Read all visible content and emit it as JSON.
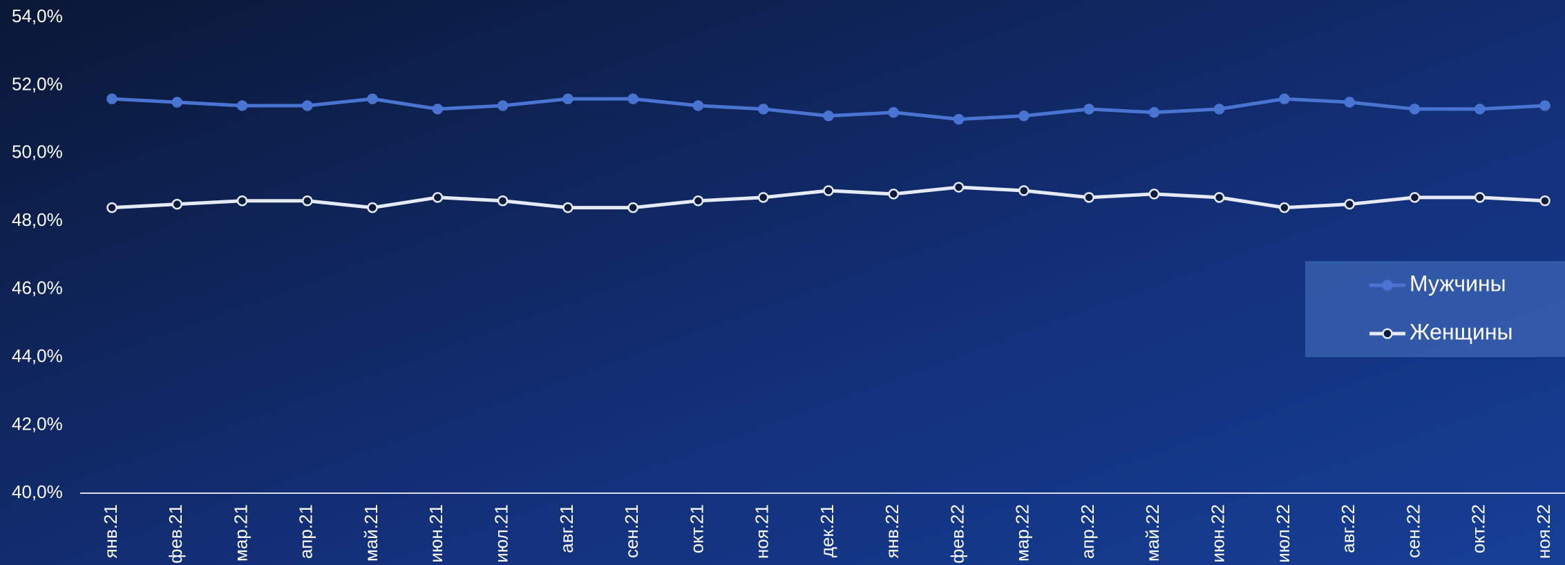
{
  "chart_data": {
    "type": "line",
    "categories": [
      "янв.21",
      "фев.21",
      "мар.21",
      "апр.21",
      "май.21",
      "июн.21",
      "июл.21",
      "авг.21",
      "сен.21",
      "окт.21",
      "ноя.21",
      "дек.21",
      "янв.22",
      "фев.22",
      "мар.22",
      "апр.22",
      "май.22",
      "июн.22",
      "июл.22",
      "авг.22",
      "сен.22",
      "окт.22",
      "ноя.22"
    ],
    "series": [
      {
        "name": "Мужчины",
        "color": "#4a74d2",
        "values": [
          51.6,
          51.5,
          51.4,
          51.4,
          51.6,
          51.3,
          51.4,
          51.6,
          51.6,
          51.4,
          51.3,
          51.1,
          51.2,
          51.0,
          51.1,
          51.3,
          51.2,
          51.3,
          51.6,
          51.5,
          51.3,
          51.3,
          51.4
        ]
      },
      {
        "name": "Женщины",
        "color": "#e6eaf6",
        "values": [
          48.4,
          48.5,
          48.6,
          48.6,
          48.4,
          48.7,
          48.6,
          48.4,
          48.4,
          48.6,
          48.7,
          48.9,
          48.8,
          49.0,
          48.9,
          48.7,
          48.8,
          48.7,
          48.4,
          48.5,
          48.7,
          48.7,
          48.6
        ]
      }
    ],
    "ylim": [
      40,
      54
    ],
    "yticks": [
      {
        "value": 40,
        "label": "40,0%"
      },
      {
        "value": 42,
        "label": "42,0%"
      },
      {
        "value": 44,
        "label": "44,0%"
      },
      {
        "value": 46,
        "label": "46,0%"
      },
      {
        "value": 48,
        "label": "48,0%"
      },
      {
        "value": 50,
        "label": "50,0%"
      },
      {
        "value": 52,
        "label": "52,0%"
      },
      {
        "value": 54,
        "label": "54,0%"
      }
    ],
    "legend": "right"
  }
}
